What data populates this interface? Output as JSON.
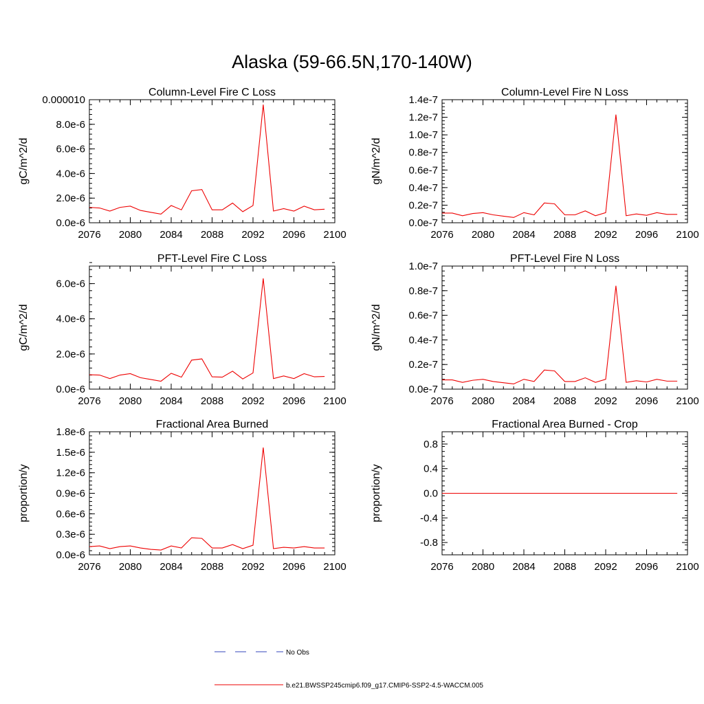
{
  "title": "Alaska (59-66.5N,170-140W)",
  "legend": {
    "entries": [
      {
        "label": "No Obs",
        "color": "#3344bb",
        "dash": true
      },
      {
        "label": "b.e21.BWSSP245cmip6.f09_g17.CMIP6-SSP2-4.5-WACCM.005",
        "color": "#ee0000",
        "dash": false
      }
    ]
  },
  "chart_data": [
    {
      "type": "line",
      "title": "Column-Level Fire C Loss",
      "ylabel": "gC/m^2/d",
      "xlim": [
        2076,
        2100
      ],
      "ylim": [
        0,
        1e-05
      ],
      "xticks": [
        "2076",
        "2080",
        "2084",
        "2088",
        "2092",
        "2096",
        "2100"
      ],
      "yticks": [
        {
          "v": 0,
          "label": "0.0e-6"
        },
        {
          "v": 2e-06,
          "label": "2.0e-6"
        },
        {
          "v": 4e-06,
          "label": "4.0e-6"
        },
        {
          "v": 6e-06,
          "label": "6.0e-6"
        },
        {
          "v": 8e-06,
          "label": "8.0e-6"
        },
        {
          "v": 1e-05,
          "label": "0.000010"
        }
      ],
      "x": [
        2076,
        2077,
        2078,
        2079,
        2080,
        2081,
        2082,
        2083,
        2084,
        2085,
        2086,
        2087,
        2088,
        2089,
        2090,
        2091,
        2092,
        2093,
        2094,
        2095,
        2096,
        2097,
        2098,
        2099
      ],
      "series": [
        {
          "color": "#ee0000",
          "values": [
            1.25e-06,
            1.2e-06,
            9.5e-07,
            1.25e-06,
            1.35e-06,
            1e-06,
            8.5e-07,
            7e-07,
            1.4e-06,
            1.05e-06,
            2.6e-06,
            2.7e-06,
            1.05e-06,
            1.05e-06,
            1.6e-06,
            9e-07,
            1.4e-06,
            9.6e-06,
            9.5e-07,
            1.15e-06,
            9.5e-07,
            1.35e-06,
            1.05e-06,
            1.1e-06
          ]
        }
      ]
    },
    {
      "type": "line",
      "title": "Column-Level Fire N Loss",
      "ylabel": "gN/m^2/d",
      "xlim": [
        2076,
        2100
      ],
      "ylim": [
        0,
        1.4e-07
      ],
      "xticks": [
        "2076",
        "2080",
        "2084",
        "2088",
        "2092",
        "2096",
        "2100"
      ],
      "yticks": [
        {
          "v": 0,
          "label": "0.0e-7"
        },
        {
          "v": 2e-08,
          "label": "0.2e-7"
        },
        {
          "v": 4e-08,
          "label": "0.4e-7"
        },
        {
          "v": 6e-08,
          "label": "0.6e-7"
        },
        {
          "v": 8e-08,
          "label": "0.8e-7"
        },
        {
          "v": 1e-07,
          "label": "1.0e-7"
        },
        {
          "v": 1.2e-07,
          "label": "1.2e-7"
        },
        {
          "v": 1.4e-07,
          "label": "1.4e-7"
        }
      ],
      "x": [
        2076,
        2077,
        2078,
        2079,
        2080,
        2081,
        2082,
        2083,
        2084,
        2085,
        2086,
        2087,
        2088,
        2089,
        2090,
        2091,
        2092,
        2093,
        2094,
        2095,
        2096,
        2097,
        2098,
        2099
      ],
      "series": [
        {
          "color": "#ee0000",
          "values": [
            1.1e-08,
            1.1e-08,
            8e-09,
            1.05e-08,
            1.15e-08,
            9e-09,
            7.5e-09,
            6e-09,
            1.15e-08,
            9e-09,
            2.25e-08,
            2.15e-08,
            9e-09,
            9e-09,
            1.35e-08,
            8e-09,
            1.15e-08,
            1.23e-07,
            8e-09,
            1e-08,
            8.5e-09,
            1.15e-08,
            9.5e-09,
            9.5e-09
          ]
        }
      ]
    },
    {
      "type": "line",
      "title": "PFT-Level Fire C Loss",
      "ylabel": "gC/m^2/d",
      "xlim": [
        2076,
        2100
      ],
      "ylim": [
        0,
        7e-06
      ],
      "xticks": [
        "2076",
        "2080",
        "2084",
        "2088",
        "2092",
        "2096",
        "2100"
      ],
      "yticks": [
        {
          "v": 0,
          "label": "0.0e-6"
        },
        {
          "v": 2e-06,
          "label": "2.0e-6"
        },
        {
          "v": 4e-06,
          "label": "4.0e-6"
        },
        {
          "v": 6e-06,
          "label": "6.0e-6"
        }
      ],
      "x": [
        2076,
        2077,
        2078,
        2079,
        2080,
        2081,
        2082,
        2083,
        2084,
        2085,
        2086,
        2087,
        2088,
        2089,
        2090,
        2091,
        2092,
        2093,
        2094,
        2095,
        2096,
        2097,
        2098,
        2099
      ],
      "series": [
        {
          "color": "#ee0000",
          "values": [
            8.2e-07,
            8e-07,
            6e-07,
            8e-07,
            8.8e-07,
            6.5e-07,
            5.5e-07,
            4.5e-07,
            9e-07,
            6.8e-07,
            1.65e-06,
            1.72e-06,
            7e-07,
            6.8e-07,
            1.02e-06,
            5.8e-07,
            9.2e-07,
            6.3e-06,
            6e-07,
            7.5e-07,
            6e-07,
            8.8e-07,
            7e-07,
            7.2e-07
          ]
        }
      ]
    },
    {
      "type": "line",
      "title": "PFT-Level Fire N Loss",
      "ylabel": "gN/m^2/d",
      "xlim": [
        2076,
        2100
      ],
      "ylim": [
        0,
        1e-07
      ],
      "xticks": [
        "2076",
        "2080",
        "2084",
        "2088",
        "2092",
        "2096",
        "2100"
      ],
      "yticks": [
        {
          "v": 0,
          "label": "0.0e-7"
        },
        {
          "v": 2e-08,
          "label": "0.2e-7"
        },
        {
          "v": 4e-08,
          "label": "0.4e-7"
        },
        {
          "v": 6e-08,
          "label": "0.6e-7"
        },
        {
          "v": 8e-08,
          "label": "0.8e-7"
        },
        {
          "v": 1e-07,
          "label": "1.0e-7"
        }
      ],
      "x": [
        2076,
        2077,
        2078,
        2079,
        2080,
        2081,
        2082,
        2083,
        2084,
        2085,
        2086,
        2087,
        2088,
        2089,
        2090,
        2091,
        2092,
        2093,
        2094,
        2095,
        2096,
        2097,
        2098,
        2099
      ],
      "series": [
        {
          "color": "#ee0000",
          "values": [
            7.5e-09,
            7.5e-09,
            5.5e-09,
            7.2e-09,
            8e-09,
            6.2e-09,
            5.2e-09,
            4.2e-09,
            8e-09,
            6.2e-09,
            1.55e-08,
            1.48e-08,
            6.2e-09,
            6.2e-09,
            9.2e-09,
            5.5e-09,
            8e-09,
            8.4e-08,
            5.5e-09,
            6.8e-09,
            5.8e-09,
            8e-09,
            6.5e-09,
            6.5e-09
          ]
        }
      ]
    },
    {
      "type": "line",
      "title": "Fractional Area Burned",
      "ylabel": "proportion/y",
      "xlim": [
        2076,
        2100
      ],
      "ylim": [
        0,
        1.8e-06
      ],
      "xticks": [
        "2076",
        "2080",
        "2084",
        "2088",
        "2092",
        "2096",
        "2100"
      ],
      "yticks": [
        {
          "v": 0,
          "label": "0.0e-6"
        },
        {
          "v": 3e-07,
          "label": "0.3e-6"
        },
        {
          "v": 6e-07,
          "label": "0.6e-6"
        },
        {
          "v": 9e-07,
          "label": "0.9e-6"
        },
        {
          "v": 1.2e-06,
          "label": "1.2e-6"
        },
        {
          "v": 1.5e-06,
          "label": "1.5e-6"
        },
        {
          "v": 1.8e-06,
          "label": "1.8e-6"
        }
      ],
      "x": [
        2076,
        2077,
        2078,
        2079,
        2080,
        2081,
        2082,
        2083,
        2084,
        2085,
        2086,
        2087,
        2088,
        2089,
        2090,
        2091,
        2092,
        2093,
        2094,
        2095,
        2096,
        2097,
        2098,
        2099
      ],
      "series": [
        {
          "color": "#ee0000",
          "values": [
            1.2e-07,
            1.3e-07,
            9e-08,
            1.2e-07,
            1.3e-07,
            1e-07,
            8e-08,
            7e-08,
            1.3e-07,
            1e-07,
            2.5e-07,
            2.4e-07,
            1e-07,
            1e-07,
            1.5e-07,
            9e-08,
            1.4e-07,
            1.57e-06,
            9e-08,
            1.1e-07,
            1e-07,
            1.2e-07,
            1e-07,
            1e-07
          ]
        }
      ]
    },
    {
      "type": "line",
      "title": "Fractional Area Burned - Crop",
      "ylabel": "proportion/y",
      "xlim": [
        2076,
        2100
      ],
      "ylim": [
        -1.0,
        1.0
      ],
      "xticks": [
        "2076",
        "2080",
        "2084",
        "2088",
        "2092",
        "2096",
        "2100"
      ],
      "yticks": [
        {
          "v": -0.8,
          "label": "-0.8"
        },
        {
          "v": -0.4,
          "label": "-0.4"
        },
        {
          "v": 0.0,
          "label": "0.0"
        },
        {
          "v": 0.4,
          "label": "0.4"
        },
        {
          "v": 0.8,
          "label": "0.8"
        }
      ],
      "x": [
        2076,
        2077,
        2078,
        2079,
        2080,
        2081,
        2082,
        2083,
        2084,
        2085,
        2086,
        2087,
        2088,
        2089,
        2090,
        2091,
        2092,
        2093,
        2094,
        2095,
        2096,
        2097,
        2098,
        2099
      ],
      "series": [
        {
          "color": "#ee0000",
          "values": [
            0,
            0,
            0,
            0,
            0,
            0,
            0,
            0,
            0,
            0,
            0,
            0,
            0,
            0,
            0,
            0,
            0,
            0,
            0,
            0,
            0,
            0,
            0,
            0
          ]
        }
      ]
    }
  ]
}
